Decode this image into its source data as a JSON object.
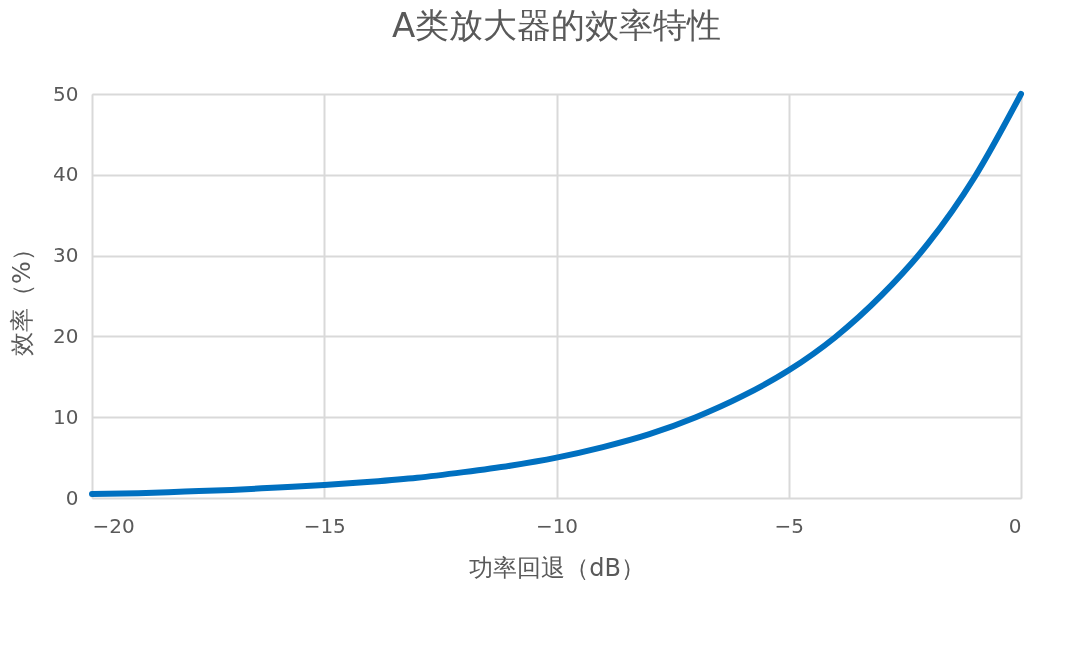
{
  "chart_data": {
    "type": "line",
    "title": "A类放大器的效率特性",
    "xlabel": "功率回退（dB）",
    "ylabel": "效率（%）",
    "x": [
      -20,
      -19,
      -18,
      -17,
      -16,
      -15,
      -14,
      -13,
      -12,
      -11,
      -10,
      -9,
      -8,
      -7,
      -6,
      -5,
      -4,
      -3,
      -2,
      -1,
      0
    ],
    "series": [
      {
        "color": "#0070c0",
        "values": [
          0.5,
          0.6,
          0.8,
          1.0,
          1.3,
          1.6,
          2.0,
          2.5,
          3.2,
          4.0,
          5.0,
          6.3,
          7.9,
          10.0,
          12.6,
          15.8,
          19.9,
          25.1,
          31.5,
          39.7,
          50.0
        ]
      }
    ],
    "xlim": [
      -20,
      0
    ],
    "xticks": [
      -20,
      -15,
      -10,
      -5,
      0
    ],
    "ylim": [
      0,
      50
    ],
    "yticks": [
      0,
      10,
      20,
      30,
      40,
      50
    ],
    "grid": true,
    "marker": "none",
    "line_style": "solid"
  }
}
